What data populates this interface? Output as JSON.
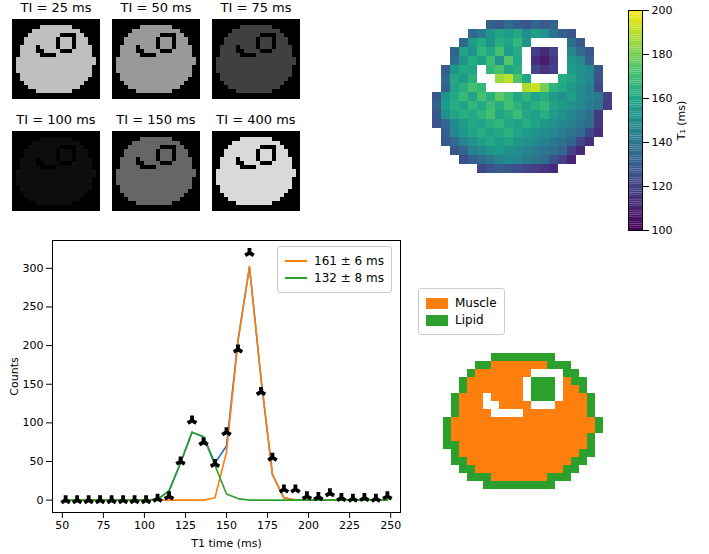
{
  "chart_data": [
    {
      "type": "images",
      "panels": [
        {
          "title": "TI = 25 ms",
          "signal": 0.75
        },
        {
          "title": "TI = 50 ms",
          "signal": 0.6
        },
        {
          "title": "TI = 75 ms",
          "signal": 0.25
        },
        {
          "title": "TI = 100 ms",
          "signal": 0.05
        },
        {
          "title": "TI = 150 ms",
          "signal": 0.4
        },
        {
          "title": "TI = 400 ms",
          "signal": 0.85
        }
      ]
    },
    {
      "type": "heatmap",
      "color": "viridis",
      "colorbar": {
        "label": "T₁ (ms)",
        "range": [
          100,
          200
        ],
        "ticks": [
          100,
          120,
          140,
          160,
          180,
          200
        ]
      },
      "cells": [
        [
          null,
          null,
          null,
          null,
          null,
          null,
          132,
          128,
          135,
          130,
          126,
          133,
          129,
          131,
          null,
          null,
          null,
          null,
          null,
          null
        ],
        [
          null,
          null,
          null,
          null,
          134,
          140,
          152,
          158,
          155,
          160,
          149,
          156,
          150,
          138,
          131,
          127,
          null,
          null,
          null,
          null
        ],
        [
          null,
          null,
          null,
          133,
          155,
          161,
          150,
          163,
          158,
          166,
          152,
          null,
          null,
          null,
          null,
          136,
          128,
          null,
          null,
          null
        ],
        [
          null,
          null,
          131,
          158,
          150,
          165,
          160,
          170,
          155,
          162,
          null,
          118,
          112,
          120,
          null,
          145,
          134,
          127,
          null,
          null
        ],
        [
          null,
          null,
          136,
          150,
          162,
          157,
          168,
          152,
          173,
          160,
          null,
          114,
          108,
          117,
          null,
          152,
          148,
          130,
          null,
          null
        ],
        [
          null,
          129,
          153,
          160,
          158,
          null,
          166,
          171,
          158,
          163,
          null,
          121,
          115,
          119,
          null,
          155,
          150,
          146,
          128,
          null
        ],
        [
          null,
          134,
          160,
          155,
          164,
          null,
          null,
          185,
          190,
          172,
          160,
          null,
          null,
          null,
          162,
          158,
          151,
          147,
          125,
          null
        ],
        [
          null,
          131,
          158,
          163,
          170,
          166,
          null,
          null,
          null,
          null,
          188,
          192,
          178,
          165,
          160,
          154,
          149,
          143,
          122,
          null
        ],
        [
          128,
          152,
          160,
          167,
          158,
          171,
          163,
          175,
          168,
          160,
          165,
          158,
          162,
          155,
          150,
          157,
          148,
          144,
          140,
          120
        ],
        [
          130,
          155,
          162,
          158,
          166,
          160,
          168,
          162,
          170,
          164,
          158,
          163,
          167,
          159,
          154,
          150,
          147,
          142,
          138,
          118
        ],
        [
          127,
          150,
          158,
          163,
          160,
          165,
          170,
          158,
          163,
          168,
          160,
          157,
          162,
          155,
          150,
          146,
          141,
          136,
          117,
          null
        ],
        [
          125,
          133,
          148,
          155,
          160,
          158,
          163,
          166,
          160,
          157,
          162,
          158,
          153,
          150,
          147,
          143,
          139,
          135,
          116,
          null
        ],
        [
          null,
          130,
          147,
          153,
          158,
          162,
          157,
          160,
          164,
          158,
          155,
          152,
          149,
          146,
          142,
          138,
          134,
          122,
          114,
          null
        ],
        [
          null,
          128,
          134,
          145,
          150,
          156,
          160,
          155,
          158,
          152,
          150,
          147,
          144,
          140,
          137,
          133,
          120,
          113,
          null,
          null
        ],
        [
          null,
          null,
          126,
          132,
          143,
          148,
          152,
          155,
          150,
          148,
          145,
          142,
          139,
          136,
          132,
          118,
          112,
          null,
          null,
          null
        ],
        [
          null,
          null,
          null,
          124,
          130,
          134,
          140,
          145,
          148,
          146,
          142,
          139,
          135,
          125,
          118,
          110,
          null,
          null,
          null,
          null
        ],
        [
          null,
          null,
          null,
          null,
          null,
          122,
          126,
          129,
          127,
          124,
          121,
          118,
          115,
          112,
          null,
          null,
          null,
          null,
          null,
          null
        ]
      ]
    },
    {
      "type": "line",
      "xlabel": "T1 time (ms)",
      "ylabel": "Counts",
      "xlim": [
        44,
        256
      ],
      "ylim": [
        -16,
        336
      ],
      "xticks": [
        50,
        75,
        100,
        125,
        150,
        175,
        200,
        225,
        250
      ],
      "yticks": [
        0,
        50,
        100,
        150,
        200,
        250,
        300
      ],
      "legend": "upper right",
      "x": [
        52,
        59,
        66,
        73,
        80,
        87,
        94,
        101,
        108,
        115,
        122,
        129,
        136,
        143,
        150,
        157,
        164,
        171,
        178,
        185,
        192,
        199,
        206,
        213,
        220,
        227,
        234,
        241,
        248
      ],
      "series": [
        {
          "type": "line",
          "color": "#1f77b4",
          "values": [
            0,
            0,
            0,
            0,
            0,
            0,
            0,
            0,
            1,
            12,
            48,
            88,
            82,
            48,
            70,
            207,
            302,
            158,
            33,
            3,
            0,
            0,
            0,
            0,
            0,
            0,
            0,
            0,
            0
          ]
        },
        {
          "type": "line",
          "name": "161 ± 6 ms",
          "color": "#ff7f0e",
          "values": [
            0,
            0,
            0,
            0,
            0,
            0,
            0,
            0,
            0,
            0,
            0,
            0,
            0,
            3,
            62,
            205,
            302,
            158,
            33,
            3,
            0,
            0,
            0,
            0,
            0,
            0,
            0,
            0,
            0
          ]
        },
        {
          "type": "line",
          "name": "132 ± 8 ms",
          "color": "#2ca02c",
          "values": [
            0,
            0,
            0,
            0,
            0,
            0,
            0,
            0,
            1,
            12,
            48,
            88,
            82,
            45,
            8,
            2,
            0,
            0,
            0,
            0,
            0,
            0,
            0,
            0,
            0,
            0,
            0,
            0,
            0
          ]
        },
        {
          "type": "scatter",
          "color": "#000000",
          "marker": "tri_up",
          "values": [
            0,
            0,
            0,
            0,
            0,
            0,
            0,
            0,
            2,
            5,
            50,
            103,
            75,
            47,
            88,
            195,
            320,
            140,
            55,
            14,
            14,
            5,
            4,
            9,
            3,
            2,
            3,
            2,
            5
          ]
        }
      ]
    },
    {
      "type": "heatmap",
      "classes": [
        {
          "name": "Muscle",
          "color": "#ff7f0e"
        },
        {
          "name": "Lipid",
          "color": "#2ca02c"
        }
      ],
      "cells": [
        [
          null,
          null,
          null,
          null,
          null,
          null,
          1,
          1,
          1,
          1,
          1,
          1,
          1,
          1,
          null,
          null,
          null,
          null,
          null,
          null
        ],
        [
          null,
          null,
          null,
          null,
          1,
          1,
          0,
          0,
          0,
          0,
          0,
          0,
          0,
          1,
          1,
          1,
          null,
          null,
          null,
          null
        ],
        [
          null,
          null,
          null,
          1,
          0,
          0,
          0,
          0,
          0,
          0,
          0,
          null,
          null,
          null,
          null,
          1,
          1,
          null,
          null,
          null
        ],
        [
          null,
          null,
          1,
          0,
          0,
          0,
          0,
          0,
          0,
          0,
          null,
          1,
          1,
          1,
          null,
          0,
          1,
          1,
          null,
          null
        ],
        [
          null,
          null,
          1,
          0,
          0,
          0,
          0,
          0,
          0,
          0,
          null,
          1,
          1,
          1,
          null,
          0,
          0,
          1,
          null,
          null
        ],
        [
          null,
          1,
          0,
          0,
          0,
          null,
          0,
          0,
          0,
          0,
          null,
          1,
          1,
          1,
          null,
          0,
          0,
          0,
          1,
          null
        ],
        [
          null,
          1,
          0,
          0,
          0,
          null,
          null,
          0,
          0,
          0,
          0,
          null,
          null,
          null,
          0,
          0,
          0,
          0,
          1,
          null
        ],
        [
          null,
          1,
          0,
          0,
          0,
          0,
          null,
          null,
          null,
          null,
          0,
          0,
          0,
          0,
          0,
          0,
          0,
          0,
          1,
          null
        ],
        [
          1,
          0,
          0,
          0,
          0,
          0,
          0,
          0,
          0,
          0,
          0,
          0,
          0,
          0,
          0,
          0,
          0,
          0,
          0,
          1
        ],
        [
          1,
          0,
          0,
          0,
          0,
          0,
          0,
          0,
          0,
          0,
          0,
          0,
          0,
          0,
          0,
          0,
          0,
          0,
          0,
          1
        ],
        [
          1,
          0,
          0,
          0,
          0,
          0,
          0,
          0,
          0,
          0,
          0,
          0,
          0,
          0,
          0,
          0,
          0,
          0,
          1,
          null
        ],
        [
          1,
          1,
          0,
          0,
          0,
          0,
          0,
          0,
          0,
          0,
          0,
          0,
          0,
          0,
          0,
          0,
          0,
          0,
          1,
          null
        ],
        [
          null,
          1,
          0,
          0,
          0,
          0,
          0,
          0,
          0,
          0,
          0,
          0,
          0,
          0,
          0,
          0,
          0,
          1,
          1,
          null
        ],
        [
          null,
          1,
          1,
          0,
          0,
          0,
          0,
          0,
          0,
          0,
          0,
          0,
          0,
          0,
          0,
          0,
          1,
          1,
          null,
          null
        ],
        [
          null,
          null,
          1,
          1,
          0,
          0,
          0,
          0,
          0,
          0,
          0,
          0,
          0,
          0,
          0,
          1,
          1,
          null,
          null,
          null
        ],
        [
          null,
          null,
          null,
          1,
          1,
          1,
          0,
          0,
          0,
          0,
          0,
          0,
          0,
          1,
          1,
          1,
          null,
          null,
          null,
          null
        ],
        [
          null,
          null,
          null,
          null,
          null,
          1,
          1,
          1,
          1,
          1,
          1,
          1,
          1,
          1,
          null,
          null,
          null,
          null,
          null,
          null
        ]
      ]
    }
  ]
}
